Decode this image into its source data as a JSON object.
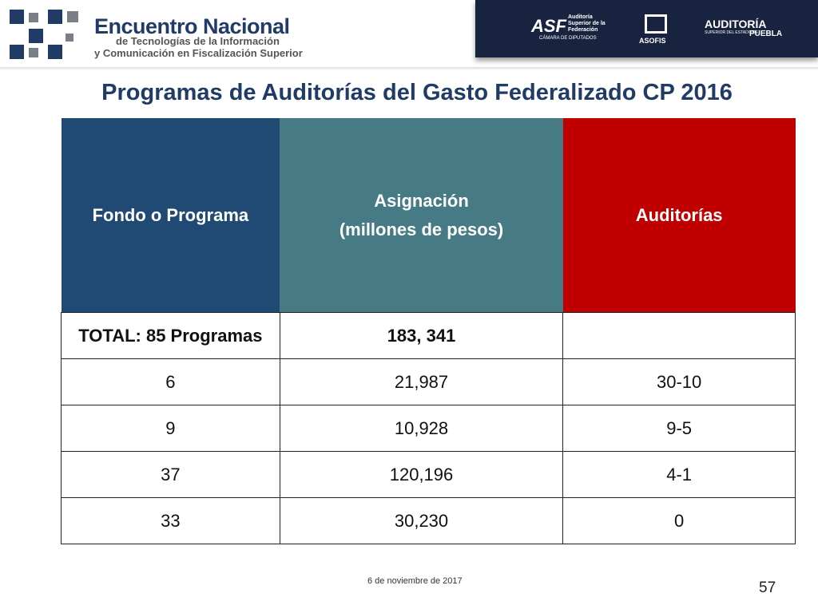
{
  "header": {
    "logo": {
      "title": "Encuentro Nacional",
      "line1": "de Tecnologías de la Información",
      "line2": "y Comunicación en Fiscalización Superior"
    },
    "partners": {
      "asf": "ASF",
      "asf_name": "Auditoría Superior de la Federación",
      "asf_sub": "CÁMARA DE DIPUTADOS",
      "asofis": "ASOFIS",
      "puebla_top": "AUDITORÍA",
      "puebla_sub": "SUPERIOR DEL ESTADO DE",
      "puebla": "PUEBLA"
    }
  },
  "title": "Programas de Auditorías del Gasto Federalizado CP 2016",
  "table": {
    "columns": [
      "Fondo o Programa",
      "Asignación\n(millones de pesos)",
      "Auditorías"
    ],
    "rows": [
      [
        "TOTAL: 85 Programas",
        "183, 341"
      ],
      [
        "6",
        "21,987",
        "30-10"
      ],
      [
        "9",
        "10,928",
        "9-5"
      ],
      [
        "37",
        "120,196",
        "4-1"
      ],
      [
        "33",
        "30,230",
        "0"
      ]
    ]
  },
  "footer": {
    "date": "6 de noviembre de 2017",
    "page": "57"
  }
}
